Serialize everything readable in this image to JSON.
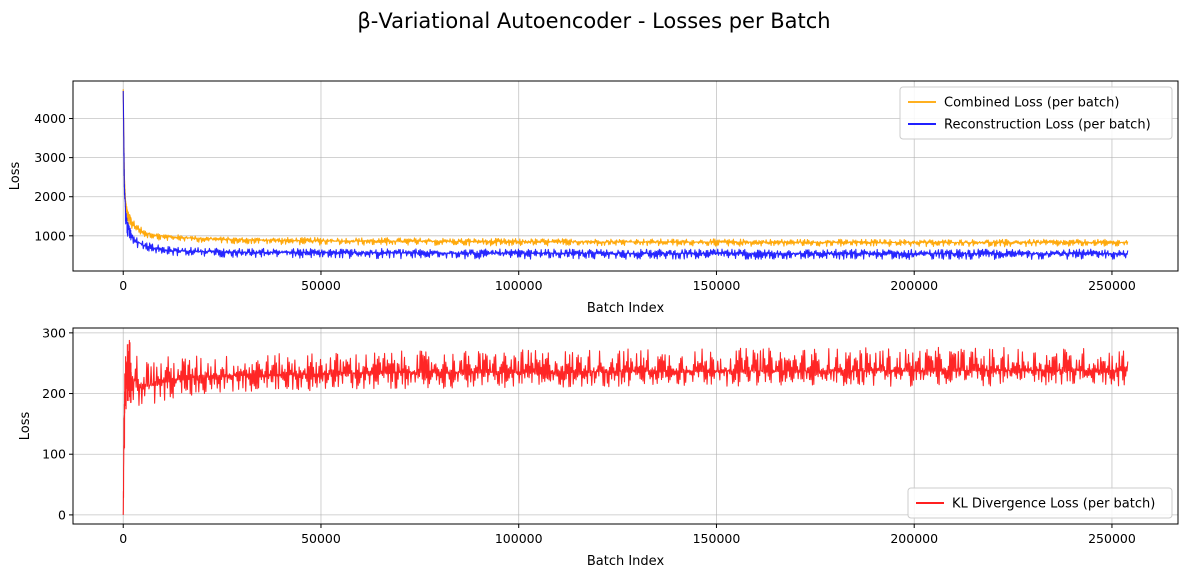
{
  "figure": {
    "suptitle": "β-Variational Autoencoder - Losses per Batch"
  },
  "chart_data": [
    {
      "type": "line",
      "xlabel": "Batch Index",
      "ylabel": "Loss",
      "xlim": [
        -12700,
        266700
      ],
      "ylim": [
        100,
        4960
      ],
      "xticks": [
        0,
        50000,
        100000,
        150000,
        200000,
        250000
      ],
      "yticks": [
        1000,
        2000,
        3000,
        4000
      ],
      "grid": true,
      "legend_position": "upper right",
      "series": [
        {
          "name": "Combined Loss (per batch)",
          "color": "#ffa500",
          "x": [
            0,
            300,
            600,
            1000,
            2000,
            3000,
            5000,
            8000,
            12000,
            20000,
            30000,
            50000,
            75000,
            100000,
            150000,
            200000,
            254000
          ],
          "y": [
            4750,
            2500,
            1900,
            1600,
            1400,
            1250,
            1100,
            1020,
            970,
            930,
            900,
            870,
            860,
            850,
            840,
            830,
            830
          ],
          "band_low": [
            4500,
            2200,
            1600,
            1350,
            1200,
            1080,
            960,
            900,
            860,
            830,
            790,
            760,
            750,
            740,
            730,
            720,
            720
          ],
          "band_high": [
            4750,
            2500,
            1900,
            1700,
            1500,
            1350,
            1180,
            1080,
            1040,
            990,
            960,
            960,
            950,
            930,
            920,
            910,
            910
          ]
        },
        {
          "name": "Reconstruction Loss (per batch)",
          "color": "#0000ff",
          "x": [
            0,
            300,
            600,
            1000,
            2000,
            3000,
            5000,
            8000,
            12000,
            20000,
            30000,
            50000,
            75000,
            100000,
            150000,
            200000,
            254000
          ],
          "y": [
            4700,
            2300,
            1600,
            1300,
            1050,
            900,
            760,
            680,
            620,
            600,
            580,
            570,
            560,
            555,
            550,
            545,
            545
          ],
          "band_low": [
            4400,
            1900,
            1300,
            1000,
            850,
            720,
            600,
            540,
            490,
            460,
            440,
            420,
            410,
            400,
            400,
            395,
            395
          ],
          "band_high": [
            4750,
            2400,
            1700,
            1400,
            1150,
            1000,
            860,
            780,
            720,
            700,
            680,
            680,
            670,
            660,
            660,
            660,
            660
          ]
        }
      ]
    },
    {
      "type": "line",
      "xlabel": "Batch Index",
      "ylabel": "Loss",
      "xlim": [
        -12700,
        266700
      ],
      "ylim": [
        -15,
        308
      ],
      "xticks": [
        0,
        50000,
        100000,
        150000,
        200000,
        250000
      ],
      "yticks": [
        0,
        100,
        200,
        300
      ],
      "grid": true,
      "legend_position": "lower right",
      "series": [
        {
          "name": "KL Divergence Loss (per batch)",
          "color": "#ff0000",
          "x": [
            0,
            200,
            500,
            1000,
            1500,
            2500,
            4000,
            6000,
            10000,
            15000,
            20000,
            30000,
            50000,
            70000,
            100000,
            130000,
            150000,
            200000,
            254000
          ],
          "y": [
            0,
            140,
            210,
            240,
            245,
            225,
            215,
            212,
            220,
            225,
            228,
            230,
            232,
            235,
            235,
            237,
            237,
            238,
            238
          ],
          "band_low": [
            0,
            70,
            160,
            180,
            180,
            180,
            175,
            180,
            188,
            192,
            198,
            202,
            205,
            208,
            210,
            210,
            212,
            212,
            212
          ],
          "band_high": [
            0,
            180,
            260,
            285,
            292,
            280,
            262,
            258,
            262,
            262,
            264,
            264,
            268,
            270,
            272,
            275,
            275,
            276,
            276
          ]
        }
      ]
    }
  ]
}
